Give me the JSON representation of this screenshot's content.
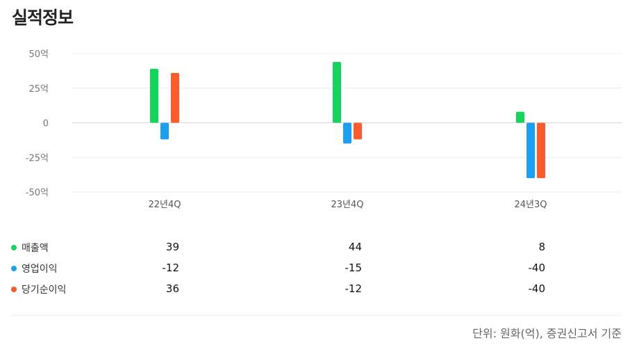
{
  "header": {
    "title": "실적정보"
  },
  "chart_data": {
    "type": "bar",
    "categories": [
      "22년4Q",
      "23년4Q",
      "24년3Q"
    ],
    "series": [
      {
        "name": "매출액",
        "values": [
          39,
          44,
          8
        ],
        "color": "#12d65b"
      },
      {
        "name": "영업이익",
        "values": [
          -12,
          -15,
          -40
        ],
        "color": "#1a9ff2"
      },
      {
        "name": "당기순이익",
        "values": [
          36,
          -12,
          -40
        ],
        "color": "#ff5a2b"
      }
    ],
    "ylim": [
      -50,
      50
    ],
    "yticks": [
      50,
      25,
      0,
      -25,
      -50
    ],
    "ytick_labels": [
      "50억",
      "25억",
      "0",
      "-25억",
      "-50억"
    ],
    "grid": true
  },
  "table": {
    "rows": [
      {
        "label": "매출액",
        "values": [
          "39",
          "44",
          "8"
        ]
      },
      {
        "label": "영업이익",
        "values": [
          "-12",
          "-15",
          "-40"
        ]
      },
      {
        "label": "당기순이익",
        "values": [
          "36",
          "-12",
          "-40"
        ]
      }
    ]
  },
  "footer": {
    "note": "단위: 원화(억), 증권신고서 기준"
  }
}
